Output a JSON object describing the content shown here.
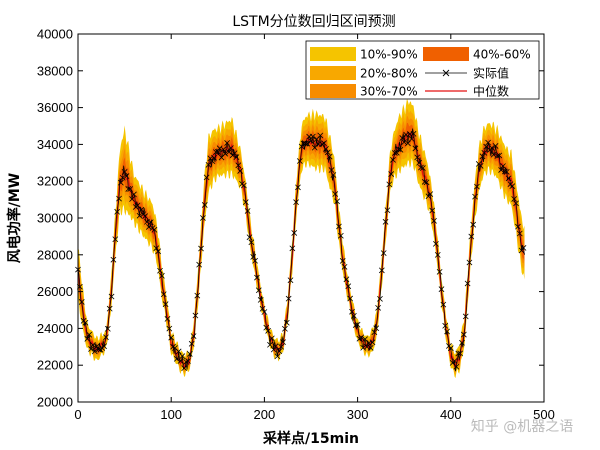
{
  "chart_data": {
    "type": "area",
    "title": "LSTM分位数回归区间预测",
    "xlabel": "采样点/15min",
    "ylabel": "风电功率/MW",
    "xlim": [
      0,
      500
    ],
    "ylim": [
      20000,
      40000
    ],
    "xticks": [
      0,
      100,
      200,
      300,
      400,
      500
    ],
    "yticks": [
      20000,
      22000,
      24000,
      26000,
      28000,
      30000,
      32000,
      34000,
      36000,
      38000,
      40000
    ],
    "grid": false,
    "legend_position": "top-right",
    "bands": [
      {
        "name": "10%-90%",
        "color": "#f5c400"
      },
      {
        "name": "20%-80%",
        "color": "#f8a800"
      },
      {
        "name": "30%-70%",
        "color": "#f78c00"
      },
      {
        "name": "40%-60%",
        "color": "#f06000"
      }
    ],
    "actual_series": {
      "name": "实际值",
      "color": "#000000"
    },
    "median_series": {
      "name": "中位数",
      "color": "#e41010"
    },
    "x_count": 480,
    "actual_anchors": [
      [
        0,
        27000
      ],
      [
        5,
        25000
      ],
      [
        10,
        23500
      ],
      [
        20,
        22800
      ],
      [
        30,
        23300
      ],
      [
        35,
        25500
      ],
      [
        40,
        29000
      ],
      [
        45,
        32000
      ],
      [
        50,
        32500
      ],
      [
        55,
        31800
      ],
      [
        60,
        31000
      ],
      [
        70,
        30200
      ],
      [
        80,
        29500
      ],
      [
        85,
        28500
      ],
      [
        90,
        26500
      ],
      [
        95,
        25000
      ],
      [
        100,
        23200
      ],
      [
        110,
        22200
      ],
      [
        115,
        22000
      ],
      [
        120,
        22300
      ],
      [
        125,
        24000
      ],
      [
        130,
        27000
      ],
      [
        135,
        30500
      ],
      [
        140,
        32800
      ],
      [
        145,
        33300
      ],
      [
        150,
        33500
      ],
      [
        160,
        33700
      ],
      [
        165,
        33800
      ],
      [
        170,
        33200
      ],
      [
        175,
        32500
      ],
      [
        180,
        31000
      ],
      [
        185,
        29000
      ],
      [
        190,
        27500
      ],
      [
        195,
        26000
      ],
      [
        200,
        24700
      ],
      [
        205,
        23700
      ],
      [
        210,
        23000
      ],
      [
        215,
        22800
      ],
      [
        220,
        23200
      ],
      [
        225,
        25000
      ],
      [
        230,
        28000
      ],
      [
        235,
        31500
      ],
      [
        240,
        33800
      ],
      [
        245,
        34200
      ],
      [
        255,
        34100
      ],
      [
        265,
        34000
      ],
      [
        270,
        33000
      ],
      [
        275,
        32000
      ],
      [
        280,
        29500
      ],
      [
        285,
        27500
      ],
      [
        290,
        26000
      ],
      [
        295,
        24800
      ],
      [
        300,
        23800
      ],
      [
        305,
        23300
      ],
      [
        310,
        23000
      ],
      [
        315,
        23200
      ],
      [
        320,
        24000
      ],
      [
        325,
        26500
      ],
      [
        330,
        29500
      ],
      [
        335,
        32500
      ],
      [
        340,
        33500
      ],
      [
        345,
        34000
      ],
      [
        350,
        34300
      ],
      [
        355,
        34600
      ],
      [
        360,
        34400
      ],
      [
        365,
        33300
      ],
      [
        370,
        32500
      ],
      [
        375,
        31800
      ],
      [
        380,
        30500
      ],
      [
        385,
        28500
      ],
      [
        390,
        26000
      ],
      [
        395,
        24000
      ],
      [
        400,
        22500
      ],
      [
        405,
        22000
      ],
      [
        410,
        22500
      ],
      [
        415,
        24000
      ],
      [
        420,
        27500
      ],
      [
        425,
        30500
      ],
      [
        430,
        32500
      ],
      [
        435,
        33500
      ],
      [
        440,
        33800
      ],
      [
        445,
        33700
      ],
      [
        450,
        33400
      ],
      [
        455,
        32800
      ],
      [
        460,
        32300
      ],
      [
        465,
        32000
      ],
      [
        470,
        30500
      ],
      [
        475,
        28800
      ],
      [
        479,
        27900
      ]
    ],
    "band_half_widths": [
      [
        0,
        1500
      ],
      [
        10,
        700
      ],
      [
        30,
        500
      ],
      [
        40,
        1200
      ],
      [
        50,
        2200
      ],
      [
        60,
        1300
      ],
      [
        80,
        1200
      ],
      [
        100,
        600
      ],
      [
        120,
        500
      ],
      [
        140,
        1500
      ],
      [
        150,
        1300
      ],
      [
        165,
        1500
      ],
      [
        175,
        1000
      ],
      [
        200,
        500
      ],
      [
        220,
        500
      ],
      [
        240,
        1200
      ],
      [
        255,
        1500
      ],
      [
        270,
        1400
      ],
      [
        290,
        600
      ],
      [
        310,
        500
      ],
      [
        330,
        900
      ],
      [
        345,
        1500
      ],
      [
        355,
        1700
      ],
      [
        370,
        1300
      ],
      [
        390,
        700
      ],
      [
        405,
        600
      ],
      [
        430,
        1200
      ],
      [
        445,
        1300
      ],
      [
        460,
        1400
      ],
      [
        479,
        1400
      ]
    ]
  },
  "watermark": "知乎 @机器之语"
}
